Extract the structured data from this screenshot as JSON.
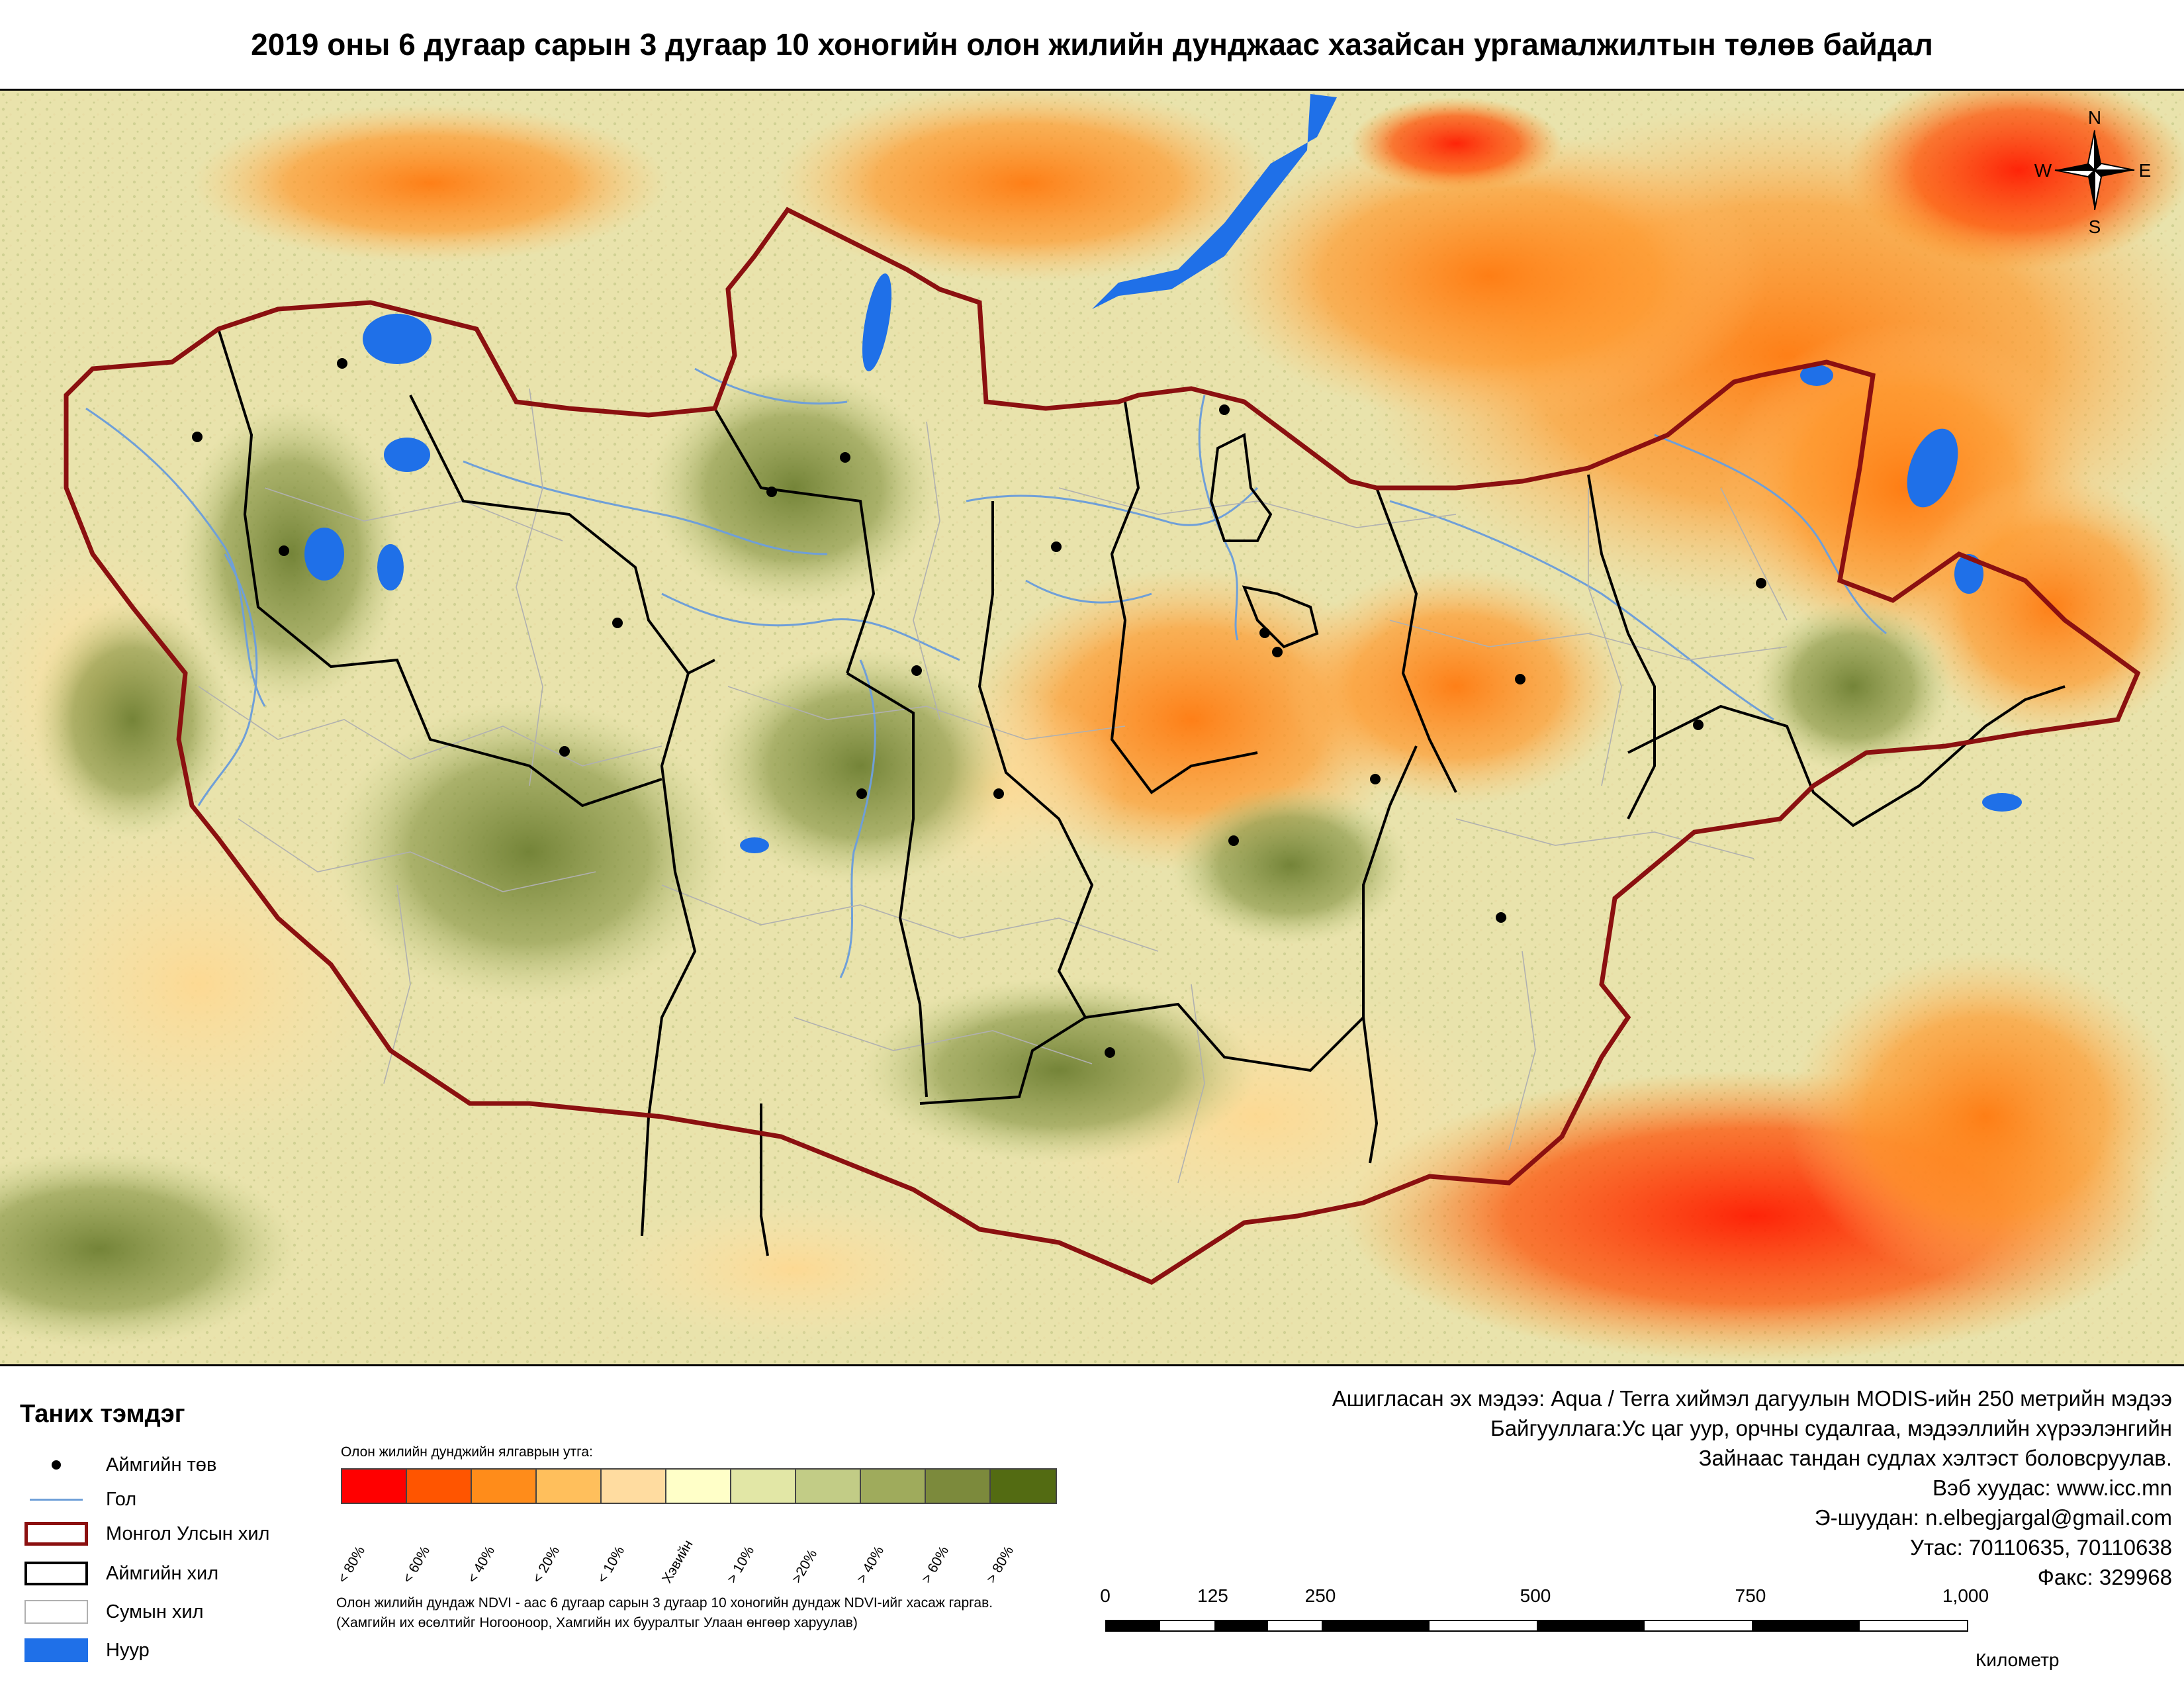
{
  "title": "2019 оны 6 дугаар сарын 3 дугаар 10 хоногийн олон жилийн дунджаас хазайсан ургамалжилтын төлөв байдал",
  "compass": {
    "n": "N",
    "s": "S",
    "e": "E",
    "w": "W"
  },
  "legend": {
    "title": "Таних тэмдэг",
    "items": [
      {
        "id": "aimag-center",
        "label": "Аймгийн төв"
      },
      {
        "id": "river",
        "label": "Гол"
      },
      {
        "id": "national-border",
        "label": "Монгол Улсын хил"
      },
      {
        "id": "aimag-border",
        "label": "Аймгийн хил"
      },
      {
        "id": "soum-border",
        "label": "Сумын хил"
      },
      {
        "id": "lake",
        "label": "Нуур"
      }
    ],
    "colors": {
      "river": "#6f9fd8",
      "national_border": "#8b1010",
      "aimag_border": "#000000",
      "soum_border": "#b8b8b8",
      "lake": "#1f70e8"
    }
  },
  "ramp": {
    "title": "Олон жилийн дунджийн ялгаврын утга:",
    "classes": [
      {
        "label": "< 80%",
        "color": "#ff0000"
      },
      {
        "label": "< 60%",
        "color": "#ff5500"
      },
      {
        "label": "< 40%",
        "color": "#ff8c1a"
      },
      {
        "label": "< 20%",
        "color": "#ffbf5c"
      },
      {
        "label": "< 10%",
        "color": "#ffdca0"
      },
      {
        "label": "Хэвийн",
        "color": "#ffffc8"
      },
      {
        "label": "> 10%",
        "color": "#e2e7a6"
      },
      {
        "label": ">20%",
        "color": "#c2cc86"
      },
      {
        "label": "> 40%",
        "color": "#9fab5c"
      },
      {
        "label": "> 60%",
        "color": "#7c8a3c"
      },
      {
        "label": "> 80%",
        "color": "#536b12"
      }
    ]
  },
  "note": {
    "line1": "Олон жилийн дундаж NDVI - аас 6 дугаар сарын 3 дугаар 10 хоногийн дундаж NDVI-ийг хасаж гаргав.",
    "line2": "(Хамгийн их өсөлтийг Ногооноор,  Хамгийн их буурaлтыг Улаан өнгөөр харуулав)"
  },
  "info": {
    "line1": "Ашигласан эх мэдээ: Aqua / Terra хиймэл дагуулын MODIS-ийн 250 метрийн мэдээ",
    "line2": "Байгууллага:Ус цаг уур, орчны судалгаа, мэдээллийн хүрээлэнгийн",
    "line3": "Зайнаас тандан судлах хэлтэст боловсруулав.",
    "line4": "Вэб хуудас: www.icc.mn",
    "line5": "Э-шуудан: n.elbegjargal@gmail.com",
    "line6": "Утас: 70110635, 70110638",
    "line7": "Факс: 329968"
  },
  "scale": {
    "labels": [
      "0",
      "125",
      "250",
      "500",
      "750",
      "1,000"
    ],
    "values": [
      0,
      125,
      250,
      500,
      750,
      1000
    ],
    "unit": "Километр"
  }
}
